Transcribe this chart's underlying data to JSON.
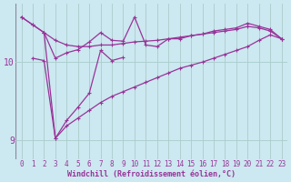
{
  "xlabel": "Windchill (Refroidissement éolien,°C)",
  "bg_color": "#cce8f0",
  "line_color": "#993399",
  "grid_color": "#aacccc",
  "xlim": [
    -0.5,
    23.5
  ],
  "ylim": [
    8.75,
    10.75
  ],
  "yticks": [
    9,
    10
  ],
  "xticks": [
    0,
    1,
    2,
    3,
    4,
    5,
    6,
    7,
    8,
    9,
    10,
    11,
    12,
    13,
    14,
    15,
    16,
    17,
    18,
    19,
    20,
    21,
    22,
    23
  ],
  "line1_x": [
    0,
    1,
    2,
    3,
    4,
    5,
    6,
    7,
    8,
    9,
    10,
    11,
    12,
    13,
    14,
    15,
    16,
    17,
    18,
    19,
    20,
    21,
    22,
    23
  ],
  "line1_y": [
    10.58,
    10.48,
    10.38,
    10.28,
    10.22,
    10.2,
    10.2,
    10.22,
    10.22,
    10.24,
    10.26,
    10.27,
    10.28,
    10.3,
    10.32,
    10.34,
    10.36,
    10.38,
    10.4,
    10.42,
    10.46,
    10.44,
    10.4,
    10.3
  ],
  "line2_x": [
    0,
    1,
    2,
    3,
    4,
    5,
    6,
    7,
    8,
    9,
    10,
    11,
    12,
    13,
    14,
    15,
    16,
    17,
    18,
    19,
    20,
    21,
    22,
    23
  ],
  "line2_y": [
    10.58,
    10.48,
    10.38,
    10.05,
    10.12,
    10.16,
    10.26,
    10.38,
    10.28,
    10.27,
    10.58,
    10.22,
    10.2,
    10.3,
    10.3,
    10.34,
    10.36,
    10.4,
    10.42,
    10.44,
    10.5,
    10.46,
    10.42,
    10.3
  ],
  "line3_x": [
    2,
    3,
    4,
    5,
    6,
    7,
    8,
    9,
    10,
    11,
    12,
    13,
    14,
    15,
    16,
    17,
    18,
    19,
    20,
    21,
    22,
    23
  ],
  "line3_y": [
    10.38,
    9.02,
    9.18,
    9.28,
    9.38,
    9.48,
    9.56,
    9.62,
    9.68,
    9.74,
    9.8,
    9.86,
    9.92,
    9.96,
    10.0,
    10.05,
    10.1,
    10.15,
    10.2,
    10.28,
    10.35,
    10.3
  ],
  "line4_x": [
    1,
    2,
    3,
    4,
    5,
    6,
    7,
    8,
    9
  ],
  "line4_y": [
    10.05,
    10.02,
    9.02,
    9.25,
    9.42,
    9.6,
    10.15,
    10.02,
    10.06
  ]
}
